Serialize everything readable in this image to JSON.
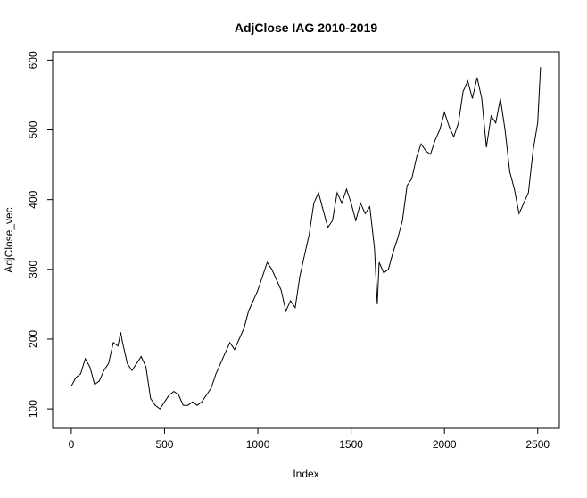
{
  "chart_data": {
    "type": "line",
    "title": "AdjClose IAG 2010-2019",
    "x_label": "Index",
    "y_label": "AdjClose_vec",
    "x": [
      1,
      25,
      50,
      75,
      100,
      125,
      150,
      175,
      200,
      225,
      250,
      265,
      275,
      300,
      325,
      350,
      375,
      400,
      425,
      450,
      475,
      500,
      525,
      550,
      575,
      600,
      625,
      650,
      675,
      700,
      725,
      750,
      775,
      800,
      825,
      850,
      875,
      900,
      925,
      950,
      975,
      1000,
      1025,
      1050,
      1075,
      1100,
      1125,
      1150,
      1175,
      1200,
      1225,
      1250,
      1275,
      1300,
      1325,
      1350,
      1375,
      1400,
      1425,
      1450,
      1475,
      1500,
      1525,
      1550,
      1575,
      1600,
      1625,
      1640,
      1650,
      1675,
      1700,
      1725,
      1750,
      1775,
      1800,
      1825,
      1850,
      1875,
      1900,
      1925,
      1950,
      1975,
      2000,
      2025,
      2050,
      2075,
      2100,
      2125,
      2150,
      2175,
      2200,
      2225,
      2250,
      2275,
      2300,
      2325,
      2350,
      2375,
      2400,
      2425,
      2450,
      2475,
      2500,
      2515
    ],
    "values": [
      133,
      145,
      150,
      172,
      160,
      135,
      140,
      155,
      165,
      195,
      190,
      210,
      195,
      165,
      155,
      165,
      175,
      160,
      115,
      105,
      100,
      110,
      120,
      125,
      120,
      105,
      105,
      110,
      105,
      110,
      120,
      130,
      150,
      165,
      180,
      195,
      185,
      200,
      215,
      240,
      255,
      270,
      290,
      310,
      300,
      285,
      270,
      240,
      255,
      245,
      290,
      320,
      350,
      395,
      410,
      385,
      360,
      370,
      410,
      395,
      415,
      395,
      370,
      395,
      380,
      390,
      330,
      250,
      310,
      295,
      300,
      325,
      345,
      370,
      420,
      430,
      460,
      480,
      470,
      465,
      485,
      500,
      525,
      505,
      490,
      510,
      555,
      570,
      545,
      575,
      545,
      475,
      520,
      510,
      545,
      500,
      440,
      415,
      380,
      395,
      410,
      470,
      510,
      590
    ],
    "color": "#000000",
    "xlim": [
      -100,
      2616
    ],
    "ylim": [
      72,
      612
    ],
    "xticks": [
      0,
      500,
      1000,
      1500,
      2000,
      2500
    ],
    "yticks": [
      100,
      200,
      300,
      400,
      500,
      600
    ]
  }
}
